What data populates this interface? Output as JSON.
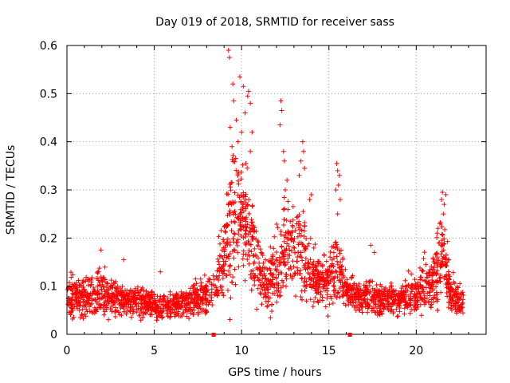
{
  "chart_data": {
    "type": "scatter",
    "title": "Day 019 of 2018, SRMTID for receiver sass",
    "xlabel": "GPS time / hours",
    "ylabel": "SRMTID / TECUs",
    "xlim": [
      0,
      24
    ],
    "ylim": [
      0,
      0.6
    ],
    "xticks": [
      0,
      5,
      10,
      15,
      20
    ],
    "xtick_labels": [
      "0",
      "5",
      "10",
      "15",
      "20"
    ],
    "yticks": [
      0,
      0.1,
      0.2,
      0.3,
      0.4,
      0.5,
      0.6
    ],
    "ytick_labels": [
      "0",
      "0.1",
      "0.2",
      "0.3",
      "0.4",
      "0.5",
      "0.6"
    ],
    "grid": true,
    "marker": "plus",
    "point_color": "#ff0000",
    "grid_color": "#a0a0a0",
    "series": [
      {
        "name": "SRMTID",
        "approx_points": 2600,
        "x_range": [
          0,
          22.7
        ],
        "profile": [
          {
            "x": 0.0,
            "mean": 0.08,
            "spread": 0.035
          },
          {
            "x": 1.0,
            "mean": 0.08,
            "spread": 0.035
          },
          {
            "x": 2.0,
            "mean": 0.085,
            "spread": 0.035
          },
          {
            "x": 3.0,
            "mean": 0.075,
            "spread": 0.03
          },
          {
            "x": 4.0,
            "mean": 0.07,
            "spread": 0.025
          },
          {
            "x": 5.0,
            "mean": 0.06,
            "spread": 0.02
          },
          {
            "x": 6.0,
            "mean": 0.06,
            "spread": 0.02
          },
          {
            "x": 7.0,
            "mean": 0.07,
            "spread": 0.025
          },
          {
            "x": 8.0,
            "mean": 0.08,
            "spread": 0.03
          },
          {
            "x": 8.5,
            "mean": 0.1,
            "spread": 0.035
          },
          {
            "x": 9.0,
            "mean": 0.16,
            "spread": 0.07
          },
          {
            "x": 9.5,
            "mean": 0.24,
            "spread": 0.12
          },
          {
            "x": 10.0,
            "mean": 0.26,
            "spread": 0.1
          },
          {
            "x": 10.5,
            "mean": 0.2,
            "spread": 0.08
          },
          {
            "x": 11.0,
            "mean": 0.13,
            "spread": 0.05
          },
          {
            "x": 11.5,
            "mean": 0.1,
            "spread": 0.04
          },
          {
            "x": 12.0,
            "mean": 0.13,
            "spread": 0.06
          },
          {
            "x": 12.5,
            "mean": 0.18,
            "spread": 0.08
          },
          {
            "x": 13.0,
            "mean": 0.17,
            "spread": 0.07
          },
          {
            "x": 13.5,
            "mean": 0.18,
            "spread": 0.08
          },
          {
            "x": 14.0,
            "mean": 0.12,
            "spread": 0.05
          },
          {
            "x": 14.5,
            "mean": 0.11,
            "spread": 0.04
          },
          {
            "x": 15.0,
            "mean": 0.12,
            "spread": 0.05
          },
          {
            "x": 15.5,
            "mean": 0.14,
            "spread": 0.06
          },
          {
            "x": 16.0,
            "mean": 0.09,
            "spread": 0.03
          },
          {
            "x": 17.0,
            "mean": 0.08,
            "spread": 0.03
          },
          {
            "x": 18.0,
            "mean": 0.075,
            "spread": 0.03
          },
          {
            "x": 19.0,
            "mean": 0.07,
            "spread": 0.025
          },
          {
            "x": 20.0,
            "mean": 0.09,
            "spread": 0.035
          },
          {
            "x": 20.5,
            "mean": 0.1,
            "spread": 0.04
          },
          {
            "x": 21.0,
            "mean": 0.11,
            "spread": 0.05
          },
          {
            "x": 21.5,
            "mean": 0.16,
            "spread": 0.07
          },
          {
            "x": 22.0,
            "mean": 0.08,
            "spread": 0.03
          },
          {
            "x": 22.7,
            "mean": 0.065,
            "spread": 0.025
          }
        ],
        "notable_points": [
          [
            9.25,
            0.59
          ],
          [
            9.3,
            0.575
          ],
          [
            9.5,
            0.52
          ],
          [
            9.55,
            0.485
          ],
          [
            9.35,
            0.43
          ],
          [
            9.9,
            0.535
          ],
          [
            10.1,
            0.515
          ],
          [
            10.4,
            0.505
          ],
          [
            10.35,
            0.495
          ],
          [
            10.5,
            0.48
          ],
          [
            10.2,
            0.46
          ],
          [
            9.7,
            0.445
          ],
          [
            10.0,
            0.42
          ],
          [
            10.6,
            0.42
          ],
          [
            9.8,
            0.4
          ],
          [
            10.5,
            0.38
          ],
          [
            9.45,
            0.39
          ],
          [
            10.25,
            0.355
          ],
          [
            12.25,
            0.485
          ],
          [
            12.3,
            0.465
          ],
          [
            12.2,
            0.435
          ],
          [
            12.4,
            0.38
          ],
          [
            12.45,
            0.36
          ],
          [
            12.5,
            0.3
          ],
          [
            12.6,
            0.32
          ],
          [
            13.5,
            0.4
          ],
          [
            13.55,
            0.38
          ],
          [
            13.4,
            0.36
          ],
          [
            13.6,
            0.345
          ],
          [
            13.3,
            0.33
          ],
          [
            14.0,
            0.29
          ],
          [
            13.9,
            0.28
          ],
          [
            15.45,
            0.355
          ],
          [
            15.5,
            0.34
          ],
          [
            15.6,
            0.33
          ],
          [
            15.55,
            0.31
          ],
          [
            15.4,
            0.3
          ],
          [
            15.65,
            0.28
          ],
          [
            15.5,
            0.25
          ],
          [
            21.5,
            0.295
          ],
          [
            21.7,
            0.29
          ],
          [
            21.45,
            0.28
          ],
          [
            21.6,
            0.27
          ],
          [
            21.55,
            0.25
          ],
          [
            21.35,
            0.23
          ],
          [
            21.25,
            0.22
          ],
          [
            21.2,
            0.21
          ],
          [
            17.4,
            0.185
          ],
          [
            17.6,
            0.17
          ],
          [
            1.95,
            0.175
          ],
          [
            3.25,
            0.155
          ],
          [
            5.35,
            0.13
          ]
        ]
      }
    ],
    "axis_markers": [
      8.4,
      16.2
    ]
  }
}
